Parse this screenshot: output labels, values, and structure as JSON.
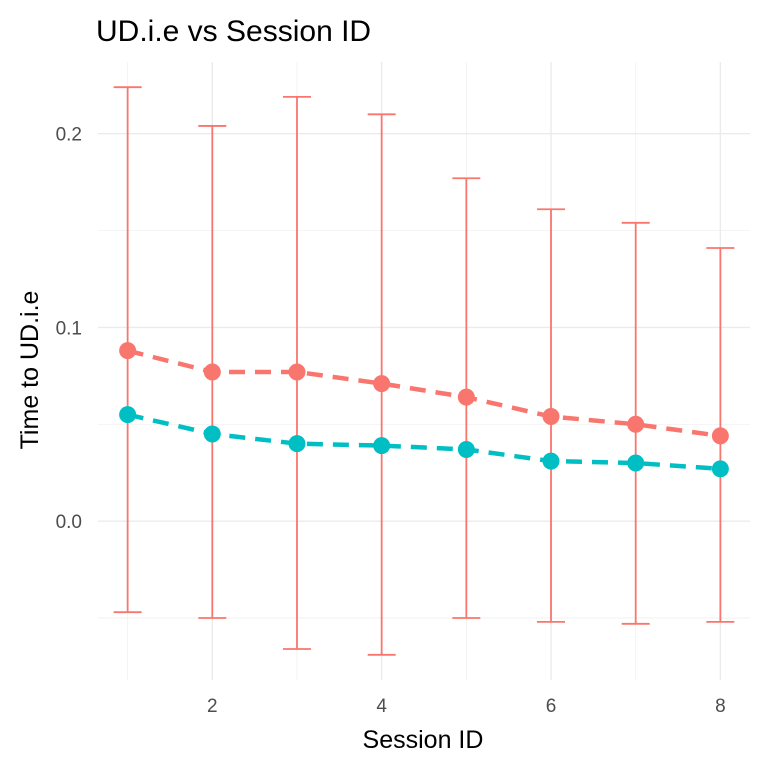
{
  "chart_data": {
    "type": "line",
    "title": "UD.i.e vs Session ID",
    "xlabel": "Session ID",
    "ylabel": "Time to UD.i.e",
    "x": [
      1,
      2,
      3,
      4,
      5,
      6,
      7,
      8
    ],
    "xlim": [
      0.65,
      8.35
    ],
    "ylim": [
      -0.082,
      0.237
    ],
    "x_ticks": [
      2,
      4,
      6,
      8
    ],
    "x_tick_labels": [
      "2",
      "4",
      "6",
      "8"
    ],
    "y_ticks": [
      0.0,
      0.1,
      0.2
    ],
    "y_tick_labels": [
      "0.0",
      "0.1",
      "0.2"
    ],
    "grid": true,
    "legend": "none",
    "series": [
      {
        "color": "#F8766D",
        "line_style": "dashed",
        "values": [
          0.088,
          0.077,
          0.077,
          0.071,
          0.064,
          0.054,
          0.05,
          0.044
        ],
        "error_upper": [
          0.224,
          0.204,
          0.219,
          0.21,
          0.177,
          0.161,
          0.154,
          0.141
        ],
        "error_lower": [
          -0.047,
          -0.05,
          -0.066,
          -0.069,
          -0.05,
          -0.052,
          -0.053,
          -0.052
        ]
      },
      {
        "color": "#00BFC4",
        "line_style": "dashed",
        "values": [
          0.055,
          0.045,
          0.04,
          0.039,
          0.037,
          0.031,
          0.03,
          0.027
        ]
      }
    ]
  }
}
